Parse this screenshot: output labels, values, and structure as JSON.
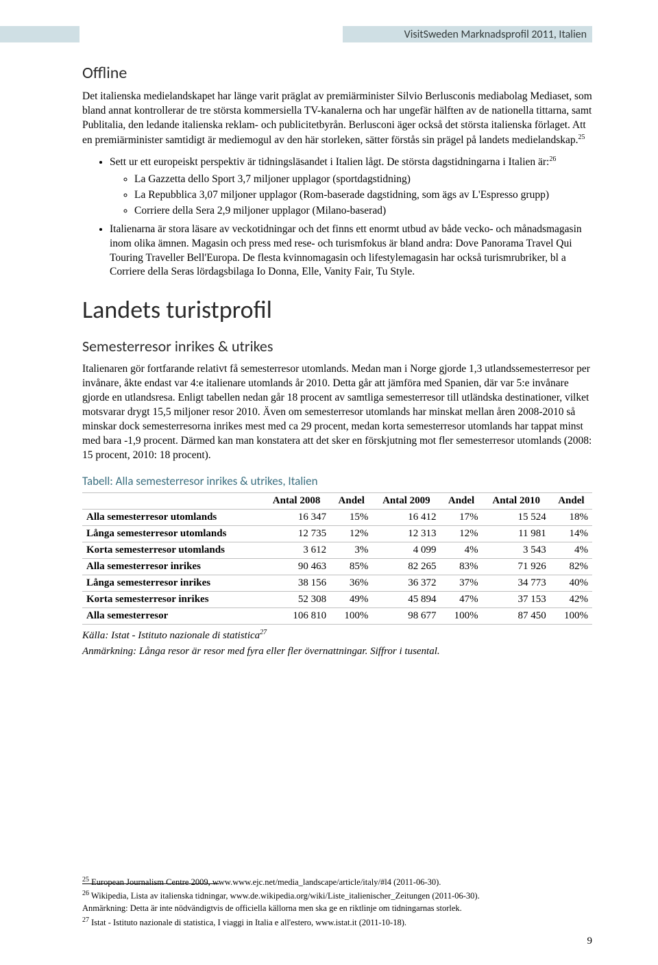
{
  "header": {
    "title": "VisitSweden Marknadsprofil 2011, Italien",
    "band_color": "#cfdfe4"
  },
  "offline": {
    "heading": "Offline",
    "para": "Det italienska medielandskapet har länge varit präglat av premiärminister Silvio Berlusconis mediabolag Mediaset, som bland annat kontrollerar de tre största kommersiella TV-kanalerna och har ungefär hälften av de nationella tittarna, samt Publitalia, den ledande italienska reklam- och publicitetbyrån. Berlusconi äger också det största italienska förlaget. Att en premiärminister samtidigt är mediemogul av den här storleken, sätter förstås sin prägel på landets medielandskap.",
    "fn_para": "25",
    "bullet1_intro": "Sett ur ett europeiskt perspektiv är tidningsläsandet i Italien lågt. De största dagstidningarna i Italien är:",
    "fn_bullet1": "26",
    "sub_a": "La Gazzetta dello Sport 3,7 miljoner upplagor (sportdagstidning)",
    "sub_b": "La Repubblica 3,07 miljoner upplagor (Rom-baserade dagstidning, som ägs av L'Espresso grupp)",
    "sub_c": "Corriere della Sera 2,9 miljoner upplagor (Milano-baserad)",
    "bullet2": "Italienarna är stora läsare av veckotidningar och det finns ett enormt utbud av både vecko- och månadsmagasin inom olika ämnen. Magasin och press med rese- och turismfokus är bland andra: Dove Panorama Travel Qui Touring Traveller Bell'Europa. De flesta kvinnomagasin och lifestylemagasin har också turismrubriker, bl a Corriere della Seras lördagsbilaga Io Donna, Elle, Vanity Fair, Tu Style."
  },
  "turistprofil": {
    "heading": "Landets turistprofil",
    "subheading": "Semesterresor inrikes & utrikes",
    "para": "Italienaren gör fortfarande relativt få semesterresor utomlands. Medan man i Norge gjorde 1,3 utlandssemesterresor per invånare, åkte endast var 4:e italienare utomlands år 2010. Detta går att jämföra med Spanien, där var 5:e invånare gjorde en utlandsresa. Enligt tabellen nedan går 18 procent av samtliga semesterresor till utländska destinationer, vilket motsvarar drygt 15,5 miljoner resor 2010. Även om semesterresor utomlands har minskat mellan åren 2008-2010 så minskar dock semesterresorna inrikes mest med ca 29 procent, medan korta semesterresor utomlands har tappat minst med bara -1,9 procent. Därmed kan man konstatera att det sker en förskjutning mot fler semesterresor utomlands (2008: 15 procent, 2010: 18 procent)."
  },
  "table": {
    "caption": "Tabell: Alla semesterresor inrikes & utrikes, Italien",
    "columns": [
      "",
      "Antal 2008",
      "Andel",
      "Antal 2009",
      "Andel",
      "Antal 2010",
      "Andel"
    ],
    "rows": [
      [
        "Alla semesterresor utomlands",
        "16 347",
        "15%",
        "16 412",
        "17%",
        "15 524",
        "18%"
      ],
      [
        "Långa semesterresor utomlands",
        "12 735",
        "12%",
        "12 313",
        "12%",
        "11 981",
        "14%"
      ],
      [
        "Korta semesterresor utomlands",
        "3 612",
        "3%",
        "4 099",
        "4%",
        "3 543",
        "4%"
      ],
      [
        "Alla semesterresor inrikes",
        "90 463",
        "85%",
        "82 265",
        "83%",
        "71 926",
        "82%"
      ],
      [
        "Långa semesterresor inrikes",
        "38 156",
        "36%",
        "36 372",
        "37%",
        "34 773",
        "40%"
      ],
      [
        "Korta semesterresor inrikes",
        "52 308",
        "49%",
        "45 894",
        "47%",
        "37 153",
        "42%"
      ],
      [
        "Alla semesterresor",
        "106 810",
        "100%",
        "98 677",
        "100%",
        "87 450",
        "100%"
      ]
    ],
    "source1": "Källa: Istat - Istituto nazionale di statistica",
    "source1_fn": "27",
    "source2": "Anmärkning: Långa resor är resor med fyra eller fler övernattningar. Siffror i tusental."
  },
  "footnotes": {
    "f25": "European Journalism Centre 2009, www.www.ejc.net/media_landscape/article/italy/#l4  (2011-06-30).",
    "f26a": "Wikipedia, Lista av italienska tidningar, www.de.wikipedia.org/wiki/Liste_italienischer_Zeitungen (2011-06-30).",
    "f26b": "Anmärkning: Detta är inte nödvändigtvis de officiella källorna men ska ge en riktlinje om tidningarnas storlek.",
    "f27": "Istat - Istituto nazionale di statistica, I viaggi in Italia e all'estero, www.istat.it (2011-10-18)."
  },
  "page_number": "9"
}
